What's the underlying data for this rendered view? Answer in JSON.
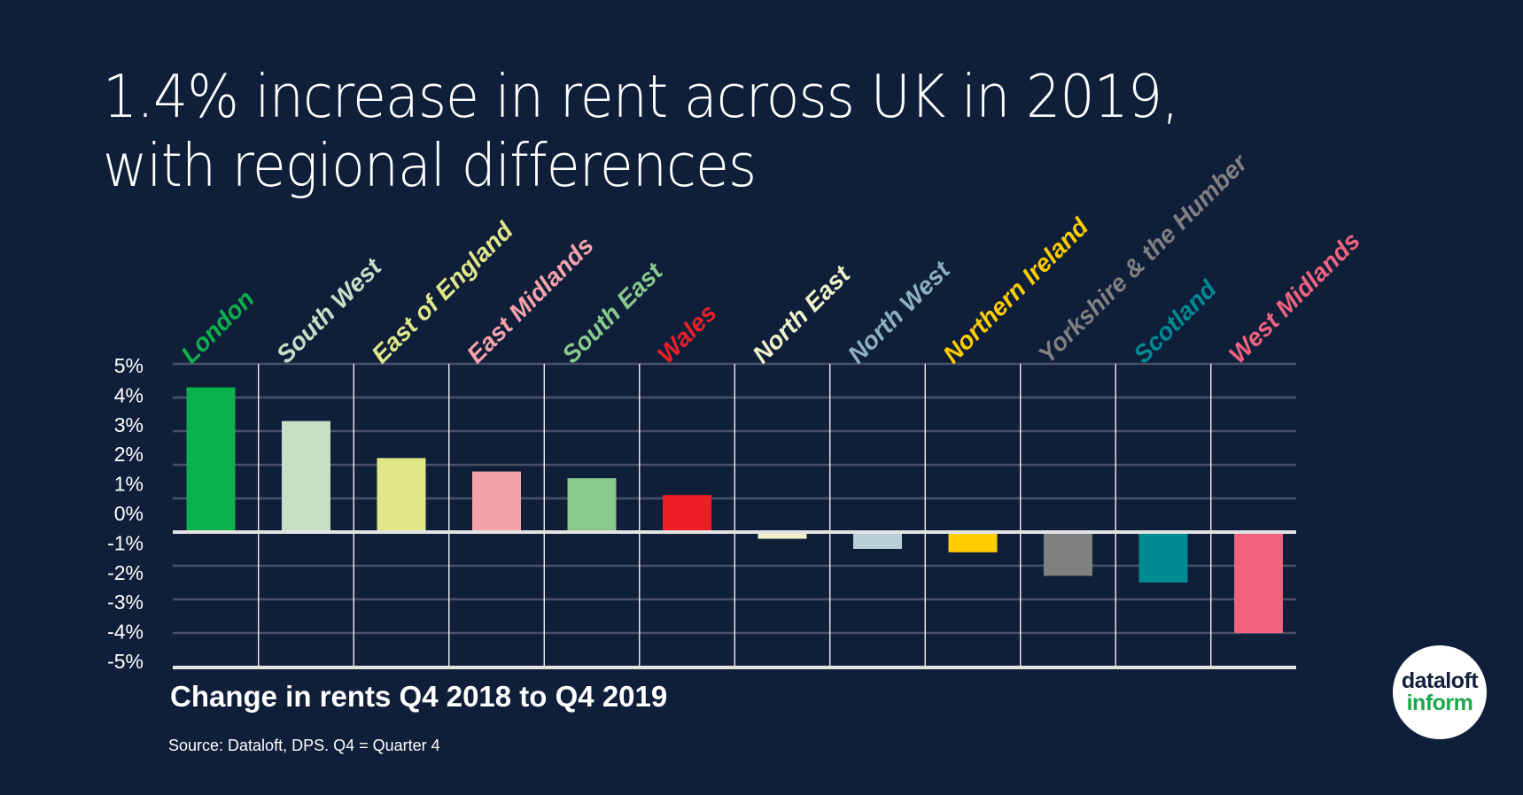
{
  "title": {
    "line1": "1.4% increase in rent across UK in 2019,",
    "line2": "with regional differences"
  },
  "subtitle": "Change in rents Q4 2018 to Q4 2019",
  "source": "Source: Dataloft, DPS. Q4 = Quarter 4",
  "logo": {
    "line1": "dataloft",
    "line2": "inform"
  },
  "chart_data": {
    "type": "bar",
    "categories": [
      "London",
      "South West",
      "East of England",
      "East Midlands",
      "South East",
      "Wales",
      "North East",
      "North West",
      "Northern Ireland",
      "Yorkshire & the Humber",
      "Scotland",
      "West Midlands"
    ],
    "values": [
      4.3,
      3.3,
      2.2,
      1.8,
      1.6,
      1.1,
      -0.2,
      -0.5,
      -0.6,
      -1.3,
      -1.5,
      -3.0
    ],
    "colors": [
      "#0db14b",
      "#c5e0c5",
      "#e1e789",
      "#f5a3a9",
      "#88c98c",
      "#ec1f27",
      "#f0f2c8",
      "#b9d0d8",
      "#ffcd00",
      "#808080",
      "#008b94",
      "#f0627d"
    ],
    "label_colors": [
      "#0db14b",
      "#c5e0c5",
      "#e1e789",
      "#f5a3a9",
      "#88c98c",
      "#ec1f27",
      "#f0f2c8",
      "#8fb0bd",
      "#ffcd00",
      "#808080",
      "#008b94",
      "#f0627d"
    ],
    "unit": "%",
    "y_tick_labels": [
      "5%",
      "4%",
      "3%",
      "2%",
      "1%",
      "0%",
      "-1%",
      "-2%",
      "-3%",
      "-4%",
      "-5%"
    ],
    "ylim": [
      -4,
      5
    ],
    "grid": true,
    "xlabel": "Change in rents Q4 2018 to Q4 2019",
    "background": "#0f1f3a"
  }
}
